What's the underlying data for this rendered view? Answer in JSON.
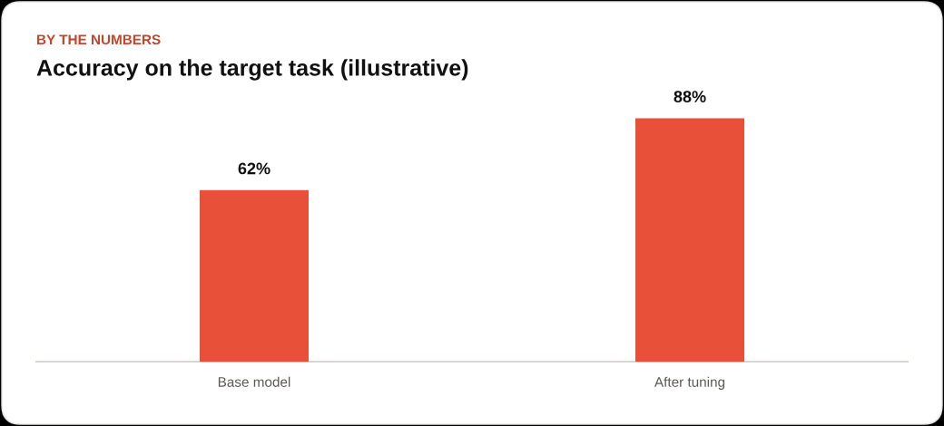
{
  "chart_data": {
    "type": "bar",
    "subtitle": "BY THE NUMBERS",
    "title": "Accuracy on the target task (illustrative)",
    "categories": [
      "Base model",
      "After tuning"
    ],
    "values": [
      62,
      88
    ],
    "value_labels": [
      "62%",
      "88%"
    ],
    "color": "#e8503a",
    "grid": false
  }
}
